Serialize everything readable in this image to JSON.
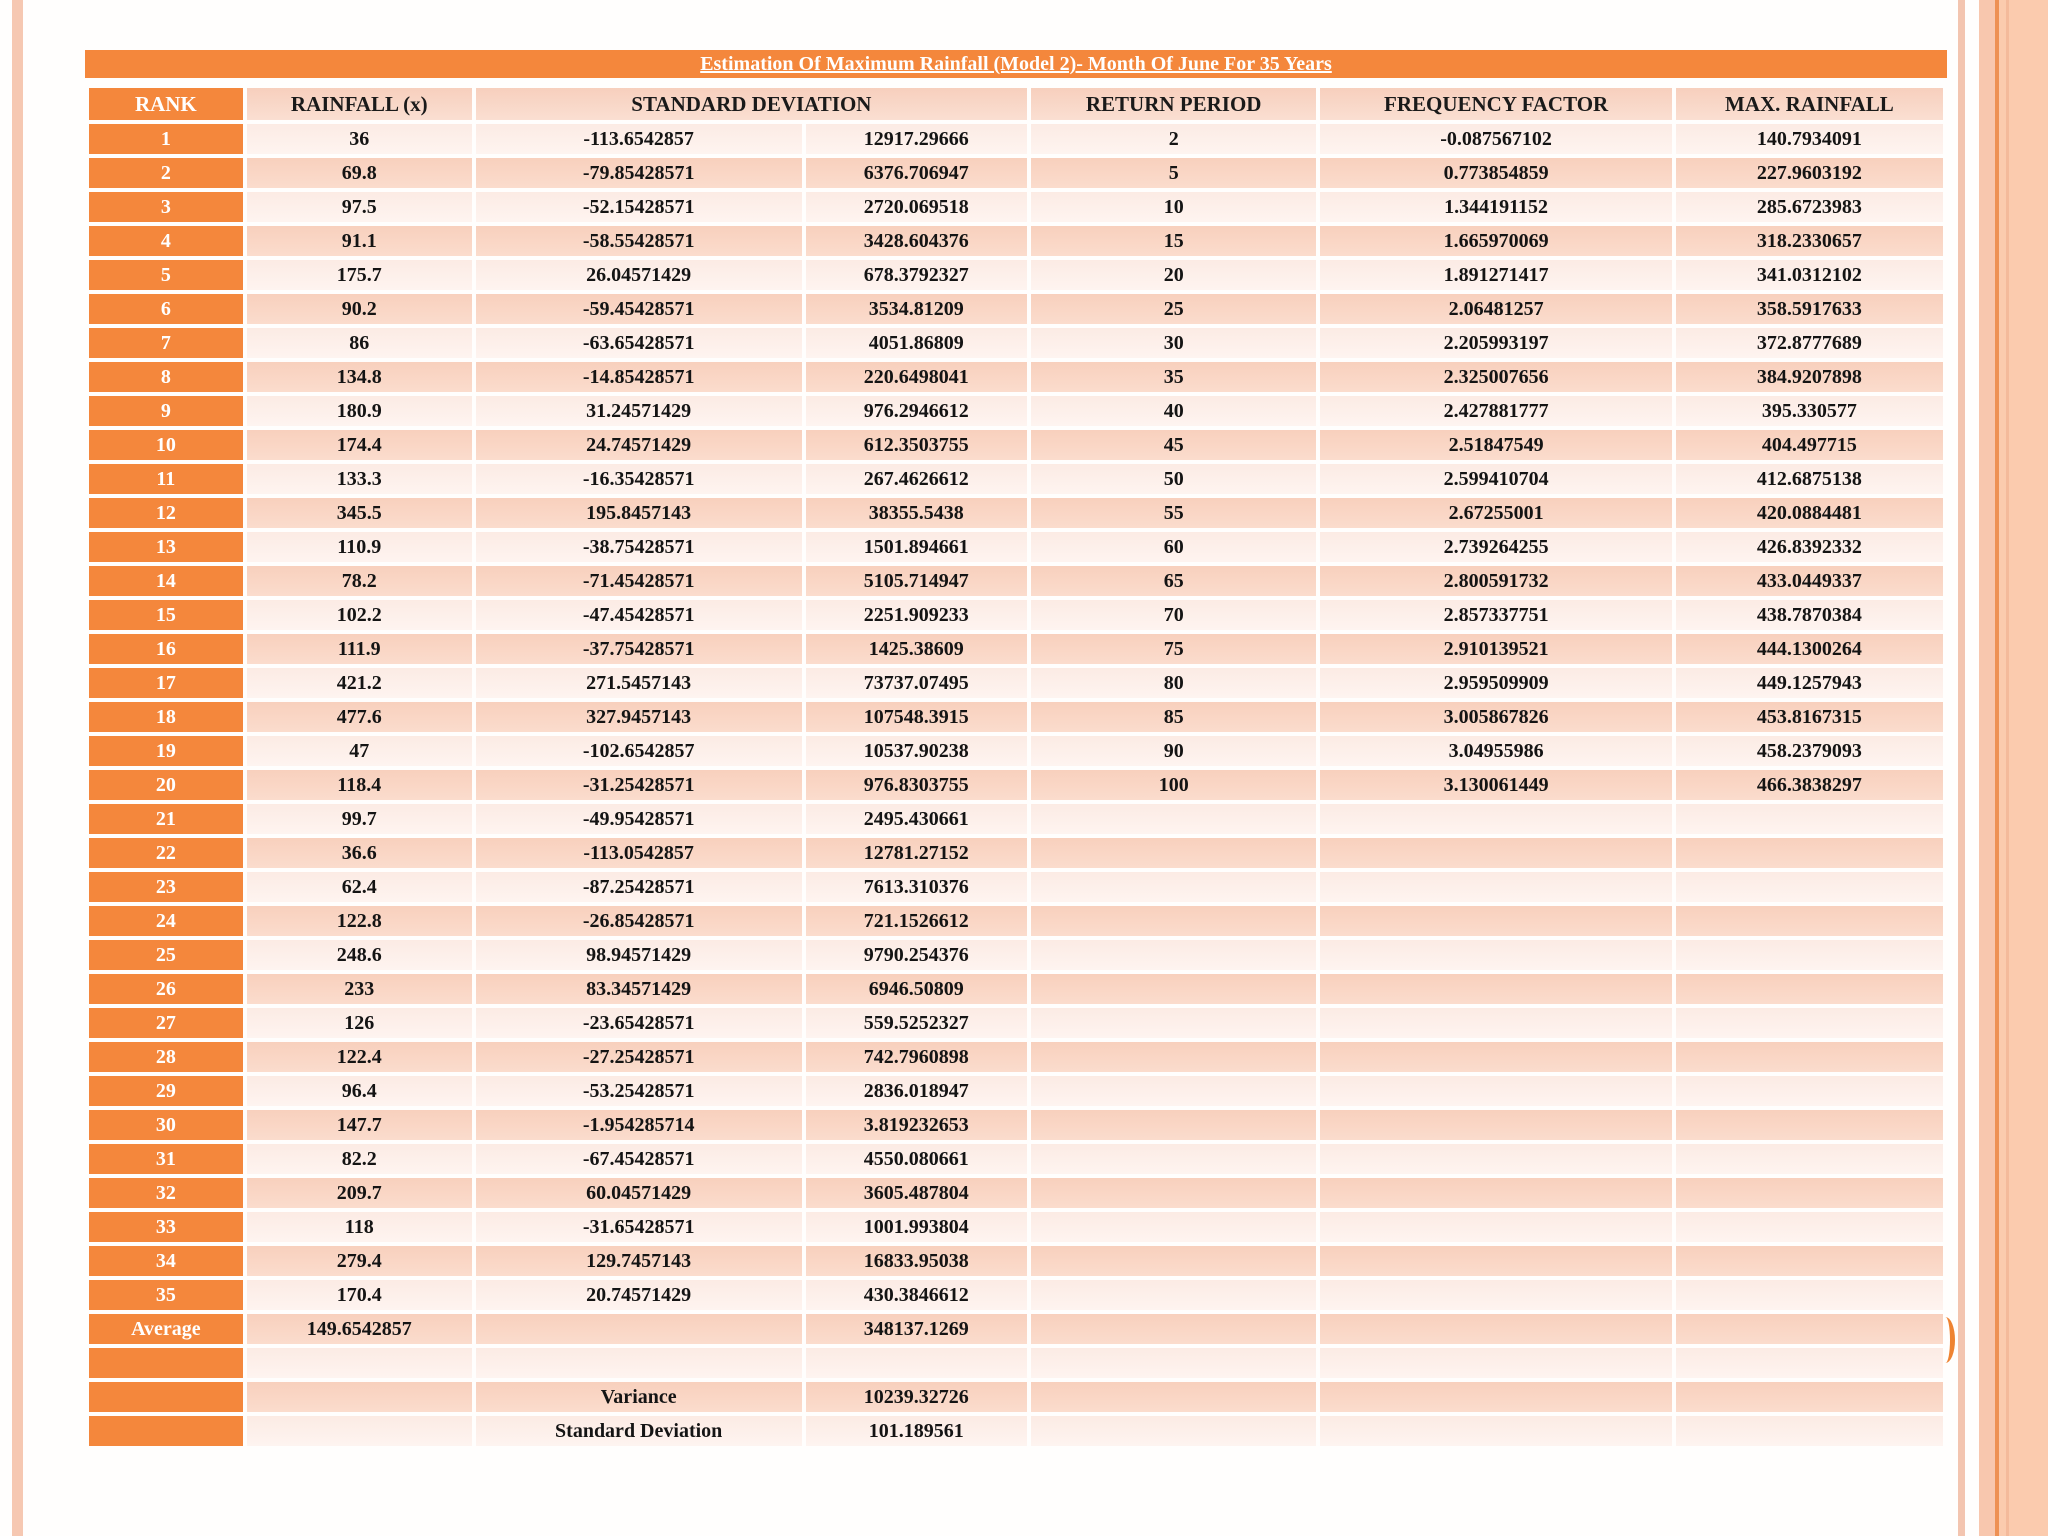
{
  "title": "Estimation Of Maximum Rainfall (Model 2)- Month Of June For 35 Years",
  "headers": {
    "rank": "RANK",
    "rainfall": "RAINFALL (x)",
    "standard_deviation": "STANDARD DEVIATION",
    "return_period": "RETURN PERIOD",
    "frequency_factor": "FREQUENCY FACTOR",
    "max_rainfall": "MAX. RAINFALL"
  },
  "rows": [
    [
      "1",
      "36",
      "-113.6542857",
      "12917.29666",
      "2",
      "-0.087567102",
      "140.7934091"
    ],
    [
      "2",
      "69.8",
      "-79.85428571",
      "6376.706947",
      "5",
      "0.773854859",
      "227.9603192"
    ],
    [
      "3",
      "97.5",
      "-52.15428571",
      "2720.069518",
      "10",
      "1.344191152",
      "285.6723983"
    ],
    [
      "4",
      "91.1",
      "-58.55428571",
      "3428.604376",
      "15",
      "1.665970069",
      "318.2330657"
    ],
    [
      "5",
      "175.7",
      "26.04571429",
      "678.3792327",
      "20",
      "1.891271417",
      "341.0312102"
    ],
    [
      "6",
      "90.2",
      "-59.45428571",
      "3534.81209",
      "25",
      "2.06481257",
      "358.5917633"
    ],
    [
      "7",
      "86",
      "-63.65428571",
      "4051.86809",
      "30",
      "2.205993197",
      "372.8777689"
    ],
    [
      "8",
      "134.8",
      "-14.85428571",
      "220.6498041",
      "35",
      "2.325007656",
      "384.9207898"
    ],
    [
      "9",
      "180.9",
      "31.24571429",
      "976.2946612",
      "40",
      "2.427881777",
      "395.330577"
    ],
    [
      "10",
      "174.4",
      "24.74571429",
      "612.3503755",
      "45",
      "2.51847549",
      "404.497715"
    ],
    [
      "11",
      "133.3",
      "-16.35428571",
      "267.4626612",
      "50",
      "2.599410704",
      "412.6875138"
    ],
    [
      "12",
      "345.5",
      "195.8457143",
      "38355.5438",
      "55",
      "2.67255001",
      "420.0884481"
    ],
    [
      "13",
      "110.9",
      "-38.75428571",
      "1501.894661",
      "60",
      "2.739264255",
      "426.8392332"
    ],
    [
      "14",
      "78.2",
      "-71.45428571",
      "5105.714947",
      "65",
      "2.800591732",
      "433.0449337"
    ],
    [
      "15",
      "102.2",
      "-47.45428571",
      "2251.909233",
      "70",
      "2.857337751",
      "438.7870384"
    ],
    [
      "16",
      "111.9",
      "-37.75428571",
      "1425.38609",
      "75",
      "2.910139521",
      "444.1300264"
    ],
    [
      "17",
      "421.2",
      "271.5457143",
      "73737.07495",
      "80",
      "2.959509909",
      "449.1257943"
    ],
    [
      "18",
      "477.6",
      "327.9457143",
      "107548.3915",
      "85",
      "3.005867826",
      "453.8167315"
    ],
    [
      "19",
      "47",
      "-102.6542857",
      "10537.90238",
      "90",
      "3.04955986",
      "458.2379093"
    ],
    [
      "20",
      "118.4",
      "-31.25428571",
      "976.8303755",
      "100",
      "3.130061449",
      "466.3838297"
    ],
    [
      "21",
      "99.7",
      "-49.95428571",
      "2495.430661",
      "",
      "",
      ""
    ],
    [
      "22",
      "36.6",
      "-113.0542857",
      "12781.27152",
      "",
      "",
      ""
    ],
    [
      "23",
      "62.4",
      "-87.25428571",
      "7613.310376",
      "",
      "",
      ""
    ],
    [
      "24",
      "122.8",
      "-26.85428571",
      "721.1526612",
      "",
      "",
      ""
    ],
    [
      "25",
      "248.6",
      "98.94571429",
      "9790.254376",
      "",
      "",
      ""
    ],
    [
      "26",
      "233",
      "83.34571429",
      "6946.50809",
      "",
      "",
      ""
    ],
    [
      "27",
      "126",
      "-23.65428571",
      "559.5252327",
      "",
      "",
      ""
    ],
    [
      "28",
      "122.4",
      "-27.25428571",
      "742.7960898",
      "",
      "",
      ""
    ],
    [
      "29",
      "96.4",
      "-53.25428571",
      "2836.018947",
      "",
      "",
      ""
    ],
    [
      "30",
      "147.7",
      "-1.954285714",
      "3.819232653",
      "",
      "",
      ""
    ],
    [
      "31",
      "82.2",
      "-67.45428571",
      "4550.080661",
      "",
      "",
      ""
    ],
    [
      "32",
      "209.7",
      "60.04571429",
      "3605.487804",
      "",
      "",
      ""
    ],
    [
      "33",
      "118",
      "-31.65428571",
      "1001.993804",
      "",
      "",
      ""
    ],
    [
      "34",
      "279.4",
      "129.7457143",
      "16833.95038",
      "",
      "",
      ""
    ],
    [
      "35",
      "170.4",
      "20.74571429",
      "430.3846612",
      "",
      "",
      ""
    ],
    [
      "Average",
      "149.6542857",
      "",
      "348137.1269",
      "",
      "",
      ""
    ],
    [
      "",
      "",
      "",
      "",
      "",
      "",
      ""
    ],
    [
      "",
      "",
      "Variance",
      "10239.32726",
      "",
      "",
      ""
    ],
    [
      "",
      "",
      "Standard Deviation",
      "101.189561",
      "",
      "",
      ""
    ]
  ],
  "colors": {
    "accent_orange": "#F4873C",
    "row_light": "#FDEFE9",
    "row_dark": "#F9D2C1",
    "header_pink": "#F8D3C2",
    "border_stripe_pink": "#F6C8B2",
    "border_band_peach": "#FBCBAE",
    "border_line_orange": "#EE9154",
    "text_dark": "#141414",
    "text_white": "#FFFFFF"
  }
}
